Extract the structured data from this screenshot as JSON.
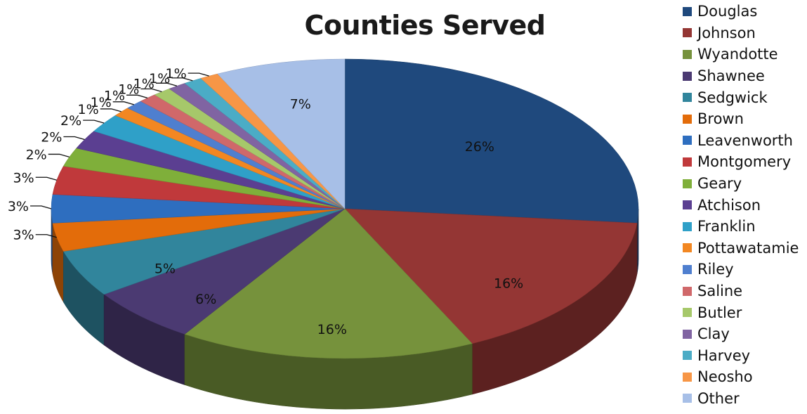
{
  "chart_data": {
    "type": "pie",
    "title": "Counties Served",
    "legend_position": "right",
    "categories": [
      "Douglas",
      "Johnson",
      "Wyandotte",
      "Shawnee",
      "Sedgwick",
      "Brown",
      "Leavenworth",
      "Montgomery",
      "Geary",
      "Atchison",
      "Franklin",
      "Pottawatamie",
      "Riley",
      "Saline",
      "Butler",
      "Clay",
      "Harvey",
      "Neosho",
      "Other"
    ],
    "values": [
      26,
      16,
      16,
      6,
      5,
      3,
      3,
      3,
      2,
      2,
      2,
      1,
      1,
      1,
      1,
      1,
      1,
      1,
      7
    ],
    "labels": [
      "26%",
      "16%",
      "16%",
      "6%",
      "5%",
      "3%",
      "3%",
      "3%",
      "2%",
      "2%",
      "2%",
      "1%",
      "1%",
      "1%",
      "1%",
      "1%",
      "1%",
      "1%",
      "7%"
    ],
    "colors": [
      "#1F497D",
      "#943634",
      "#76923C",
      "#4B3A72",
      "#31859C",
      "#E36C0A",
      "#2E6EBF",
      "#C0393B",
      "#7FAF3A",
      "#5B3F91",
      "#2FA0C8",
      "#F28722",
      "#4F7FCF",
      "#D0686A",
      "#A6C86A",
      "#8064A2",
      "#4BACC6",
      "#F79646",
      "#A7BFE7"
    ]
  }
}
